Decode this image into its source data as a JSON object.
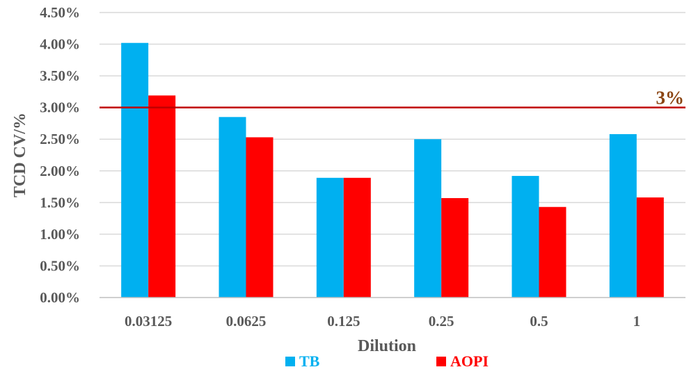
{
  "chart_data": {
    "type": "bar",
    "categories": [
      "0.03125",
      "0.0625",
      "0.125",
      "0.25",
      "0.5",
      "1"
    ],
    "series": [
      {
        "name": "TB",
        "values": [
          4.02,
          2.85,
          1.89,
          2.5,
          1.92,
          2.58
        ],
        "color": "#00b0f0"
      },
      {
        "name": "AOPI",
        "values": [
          3.19,
          2.53,
          1.89,
          1.57,
          1.43,
          1.58
        ],
        "color": "#ff0000"
      }
    ],
    "xlabel": "Dilution",
    "ylabel": "TCD CV/%",
    "ylim": [
      0,
      4.5
    ],
    "yticks": [
      "0.00%",
      "0.50%",
      "1.00%",
      "1.50%",
      "2.00%",
      "2.50%",
      "3.00%",
      "3.50%",
      "4.00%",
      "4.50%"
    ],
    "grid": true,
    "legend": "bottom",
    "reference_line": {
      "value": 3.0,
      "label": "3%",
      "color": "#c00000",
      "label_color": "#8b4513"
    }
  }
}
